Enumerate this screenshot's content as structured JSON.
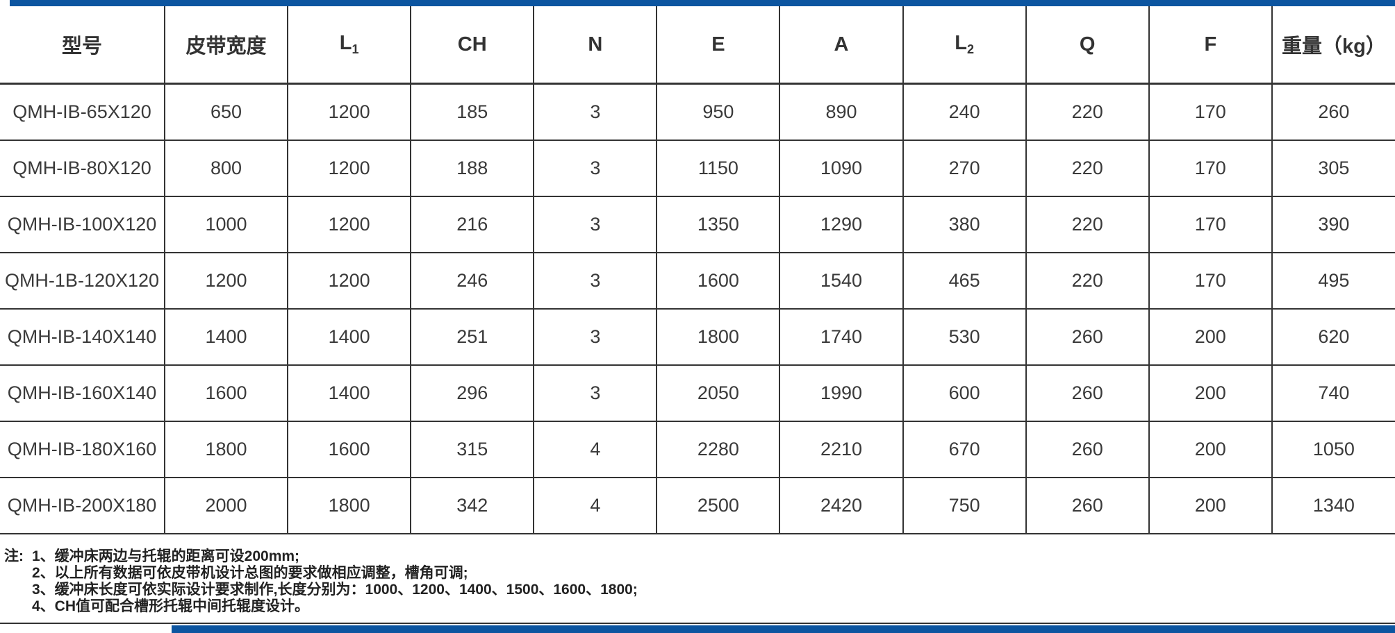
{
  "theme": {
    "accent_color": "#0c55a0",
    "border_color": "#333333",
    "text_color": "#333333"
  },
  "table": {
    "columns": [
      {
        "label": "型号"
      },
      {
        "label": "皮带宽度"
      },
      {
        "label": "L",
        "sub": "1"
      },
      {
        "label": "CH"
      },
      {
        "label": "N"
      },
      {
        "label": "E"
      },
      {
        "label": "A"
      },
      {
        "label": "L",
        "sub": "2"
      },
      {
        "label": "Q"
      },
      {
        "label": "F"
      },
      {
        "label": "重量（kg）"
      }
    ],
    "rows": [
      [
        "QMH-IB-65X120",
        "650",
        "1200",
        "185",
        "3",
        "950",
        "890",
        "240",
        "220",
        "170",
        "260"
      ],
      [
        "QMH-IB-80X120",
        "800",
        "1200",
        "188",
        "3",
        "1150",
        "1090",
        "270",
        "220",
        "170",
        "305"
      ],
      [
        "QMH-IB-100X120",
        "1000",
        "1200",
        "216",
        "3",
        "1350",
        "1290",
        "380",
        "220",
        "170",
        "390"
      ],
      [
        "QMH-1B-120X120",
        "1200",
        "1200",
        "246",
        "3",
        "1600",
        "1540",
        "465",
        "220",
        "170",
        "495"
      ],
      [
        "QMH-IB-140X140",
        "1400",
        "1400",
        "251",
        "3",
        "1800",
        "1740",
        "530",
        "260",
        "200",
        "620"
      ],
      [
        "QMH-IB-160X140",
        "1600",
        "1400",
        "296",
        "3",
        "2050",
        "1990",
        "600",
        "260",
        "200",
        "740"
      ],
      [
        "QMH-IB-180X160",
        "1800",
        "1600",
        "315",
        "4",
        "2280",
        "2210",
        "670",
        "260",
        "200",
        "1050"
      ],
      [
        "QMH-IB-200X180",
        "2000",
        "1800",
        "342",
        "4",
        "2500",
        "2420",
        "750",
        "260",
        "200",
        "1340"
      ]
    ]
  },
  "notes": {
    "prefix": "注:",
    "lines": [
      "1、缓冲床两边与托辊的距离可设200mm;",
      "2、以上所有数据可依皮带机设计总图的要求做相应调整，槽角可调;",
      "3、缓冲床长度可依实际设计要求制作,长度分别为：1000、1200、1400、1500、1600、1800;",
      "4、CH值可配合槽形托辊中间托辊度设计。"
    ]
  }
}
